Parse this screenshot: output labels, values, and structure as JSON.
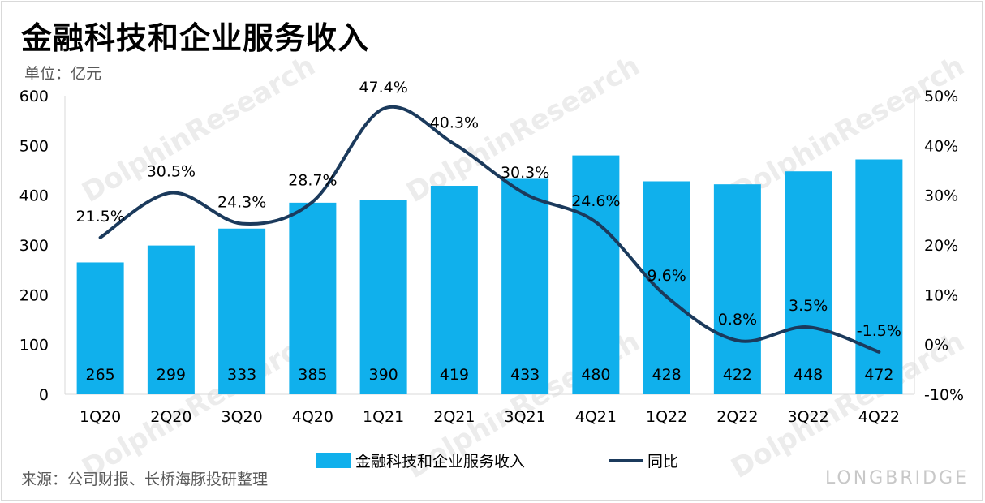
{
  "title": "金融科技和企业服务收入",
  "unit": "单位：亿元",
  "source": "来源：公司财报、长桥海豚投研整理",
  "brand": "LONGBRIDGE",
  "watermark": "DolphinResearch",
  "colors": {
    "bar": "#10b0ec",
    "line": "#1b3a5c",
    "text": "#000000",
    "axis": "#d9d9d9"
  },
  "chart_data": {
    "type": "bar",
    "categories": [
      "1Q20",
      "2Q20",
      "3Q20",
      "4Q20",
      "1Q21",
      "2Q21",
      "3Q21",
      "4Q21",
      "1Q22",
      "2Q22",
      "3Q22",
      "4Q22"
    ],
    "series": [
      {
        "name": "金融科技和企业服务收入",
        "type": "bar",
        "axis": "left",
        "values": [
          265,
          299,
          333,
          385,
          390,
          419,
          433,
          480,
          428,
          422,
          448,
          472
        ],
        "labels": [
          "265",
          "299",
          "333",
          "385",
          "390",
          "419",
          "433",
          "480",
          "428",
          "422",
          "448",
          "472"
        ]
      },
      {
        "name": "同比",
        "type": "line",
        "axis": "right",
        "values": [
          21.5,
          30.5,
          24.3,
          28.7,
          47.4,
          40.3,
          30.3,
          24.6,
          9.6,
          0.8,
          3.5,
          -1.5
        ],
        "labels": [
          "21.5%",
          "30.5%",
          "24.3%",
          "28.7%",
          "47.4%",
          "40.3%",
          "30.3%",
          "24.6%",
          "9.6%",
          "0.8%",
          "3.5%",
          "-1.5%"
        ]
      }
    ],
    "y_left": {
      "min": 0,
      "max": 600,
      "ticks": [
        "0",
        "100",
        "200",
        "300",
        "400",
        "500",
        "600"
      ]
    },
    "y_right": {
      "min": -10,
      "max": 50,
      "ticks": [
        "-10%",
        "0%",
        "10%",
        "20%",
        "30%",
        "40%",
        "50%"
      ]
    },
    "legend_position": "bottom",
    "grid": false
  }
}
